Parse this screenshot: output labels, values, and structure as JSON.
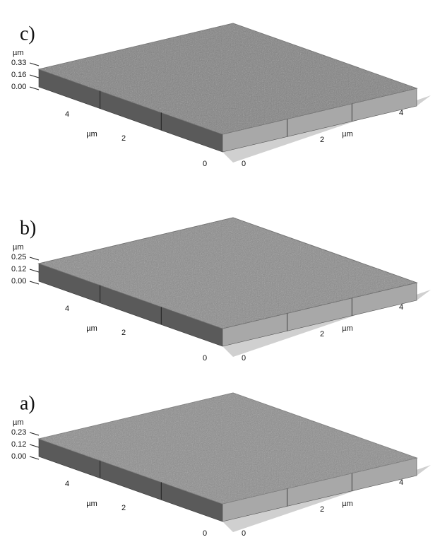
{
  "panels": [
    {
      "label": "c)",
      "z_unit": "µm",
      "z_ticks": [
        "0.33",
        "0.16",
        "0.00"
      ],
      "left_unit": "µm",
      "left_ticks": [
        "4",
        "2",
        "0"
      ],
      "right_unit": "µm",
      "right_ticks": [
        "0",
        "2",
        "4"
      ]
    },
    {
      "label": "b)",
      "z_unit": "µm",
      "z_ticks": [
        "0.25",
        "0.12",
        "0.00"
      ],
      "left_unit": "µm",
      "left_ticks": [
        "4",
        "2",
        "0"
      ],
      "right_unit": "µm",
      "right_ticks": [
        "0",
        "2",
        "4"
      ]
    },
    {
      "label": "a)",
      "z_unit": "µm",
      "z_ticks": [
        "0.23",
        "0.12",
        "0.00"
      ],
      "left_unit": "µm",
      "left_ticks": [
        "4",
        "2",
        "0"
      ],
      "right_unit": "µm",
      "right_ticks": [
        "0",
        "2",
        "4"
      ]
    }
  ]
}
